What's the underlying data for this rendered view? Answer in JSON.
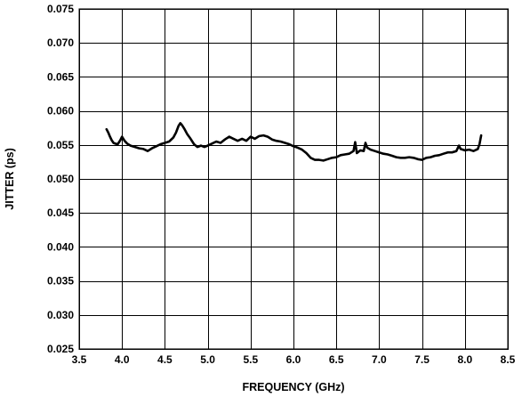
{
  "chart_data": {
    "type": "line",
    "title": "",
    "xlabel": "FREQUENCY (GHz)",
    "ylabel": "JITTER (ps)",
    "xlim": [
      3.5,
      8.5
    ],
    "ylim": [
      0.025,
      0.075
    ],
    "grid": true,
    "x_ticks": [
      "3.5",
      "4.0",
      "4.5",
      "5.0",
      "5.5",
      "6.0",
      "6.5",
      "7.0",
      "7.5",
      "8.0",
      "8.5"
    ],
    "y_ticks": [
      "0.025",
      "0.030",
      "0.035",
      "0.040",
      "0.045",
      "0.050",
      "0.055",
      "0.060",
      "0.065",
      "0.070",
      "0.075"
    ],
    "series": [
      {
        "color": "#000000",
        "x": [
          3.82,
          3.84,
          3.86,
          3.88,
          3.9,
          3.92,
          3.95,
          3.98,
          4.0,
          4.03,
          4.06,
          4.1,
          4.15,
          4.2,
          4.25,
          4.3,
          4.35,
          4.4,
          4.45,
          4.5,
          4.55,
          4.6,
          4.63,
          4.66,
          4.68,
          4.7,
          4.73,
          4.76,
          4.8,
          4.84,
          4.88,
          4.92,
          4.96,
          5.0,
          5.05,
          5.1,
          5.15,
          5.2,
          5.25,
          5.3,
          5.35,
          5.4,
          5.45,
          5.5,
          5.55,
          5.6,
          5.65,
          5.7,
          5.75,
          5.8,
          5.85,
          5.9,
          5.95,
          6.0,
          6.05,
          6.1,
          6.15,
          6.2,
          6.25,
          6.3,
          6.35,
          6.4,
          6.45,
          6.5,
          6.55,
          6.6,
          6.65,
          6.7,
          6.72,
          6.74,
          6.78,
          6.82,
          6.84,
          6.86,
          6.9,
          6.95,
          7.0,
          7.05,
          7.1,
          7.15,
          7.2,
          7.25,
          7.3,
          7.35,
          7.4,
          7.45,
          7.5,
          7.55,
          7.6,
          7.65,
          7.7,
          7.75,
          7.8,
          7.85,
          7.9,
          7.93,
          7.95,
          8.0,
          8.05,
          8.1,
          8.15,
          8.17,
          8.18,
          8.19
        ],
        "values": [
          0.0573,
          0.0568,
          0.0562,
          0.0557,
          0.0553,
          0.0552,
          0.0551,
          0.0557,
          0.0562,
          0.0556,
          0.0552,
          0.0549,
          0.0547,
          0.0545,
          0.0544,
          0.0541,
          0.0545,
          0.0548,
          0.0551,
          0.0553,
          0.0555,
          0.0561,
          0.0568,
          0.0578,
          0.0582,
          0.0579,
          0.0573,
          0.0566,
          0.0559,
          0.0551,
          0.0547,
          0.0549,
          0.0547,
          0.0549,
          0.0552,
          0.0555,
          0.0553,
          0.0558,
          0.0562,
          0.0559,
          0.0556,
          0.0559,
          0.0556,
          0.0562,
          0.0559,
          0.0563,
          0.0564,
          0.0562,
          0.0558,
          0.0556,
          0.0555,
          0.0553,
          0.0551,
          0.0548,
          0.0546,
          0.0543,
          0.0538,
          0.0531,
          0.0528,
          0.0528,
          0.0527,
          0.0529,
          0.0531,
          0.0532,
          0.0535,
          0.0536,
          0.0537,
          0.0541,
          0.0554,
          0.0538,
          0.0542,
          0.0541,
          0.0553,
          0.0546,
          0.0543,
          0.0541,
          0.0539,
          0.0537,
          0.0536,
          0.0534,
          0.0532,
          0.0531,
          0.0531,
          0.0532,
          0.0531,
          0.0529,
          0.0528,
          0.0531,
          0.0532,
          0.0534,
          0.0535,
          0.0537,
          0.0539,
          0.0539,
          0.0541,
          0.0549,
          0.0544,
          0.0542,
          0.0543,
          0.0541,
          0.0544,
          0.0551,
          0.0558,
          0.0564
        ]
      }
    ]
  }
}
